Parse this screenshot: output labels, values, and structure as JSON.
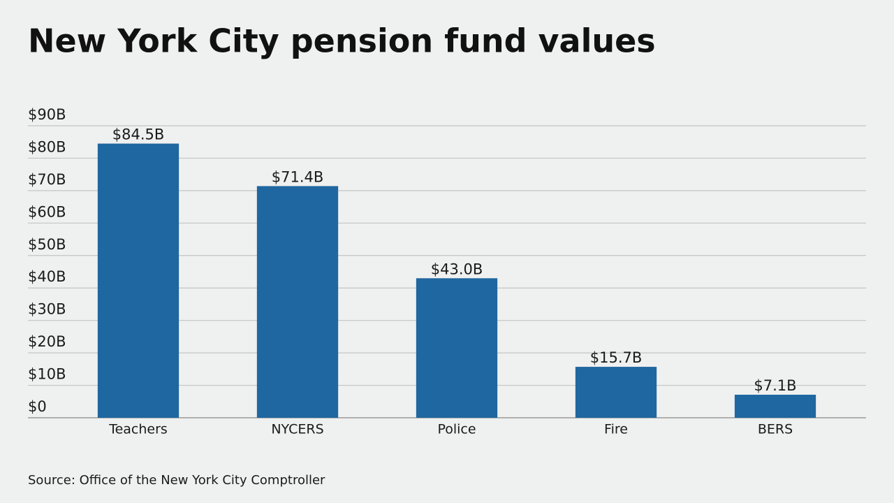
{
  "chart_data": {
    "type": "bar",
    "title": "New York City pension fund values",
    "categories": [
      "Teachers",
      "NYCERS",
      "Police",
      "Fire",
      "BERS"
    ],
    "values": [
      84.5,
      71.4,
      43.0,
      15.7,
      7.1
    ],
    "value_labels": [
      "$84.5B",
      "$71.4B",
      "$43.0B",
      "$15.7B",
      "$7.1B"
    ],
    "color": "#1f67a0",
    "ylim": [
      0,
      90
    ],
    "yticks": [
      {
        "value": 0,
        "label": "$0"
      },
      {
        "value": 10,
        "label": "$10B"
      },
      {
        "value": 20,
        "label": "$20B"
      },
      {
        "value": 30,
        "label": "$30B"
      },
      {
        "value": 40,
        "label": "$40B"
      },
      {
        "value": 50,
        "label": "$50B"
      },
      {
        "value": 60,
        "label": "$60B"
      },
      {
        "value": 70,
        "label": "$70B"
      },
      {
        "value": 80,
        "label": "$80B"
      },
      {
        "value": 90,
        "label": "$90B"
      }
    ],
    "grid": true,
    "source": "Source: Office of the New York City Comptroller"
  }
}
